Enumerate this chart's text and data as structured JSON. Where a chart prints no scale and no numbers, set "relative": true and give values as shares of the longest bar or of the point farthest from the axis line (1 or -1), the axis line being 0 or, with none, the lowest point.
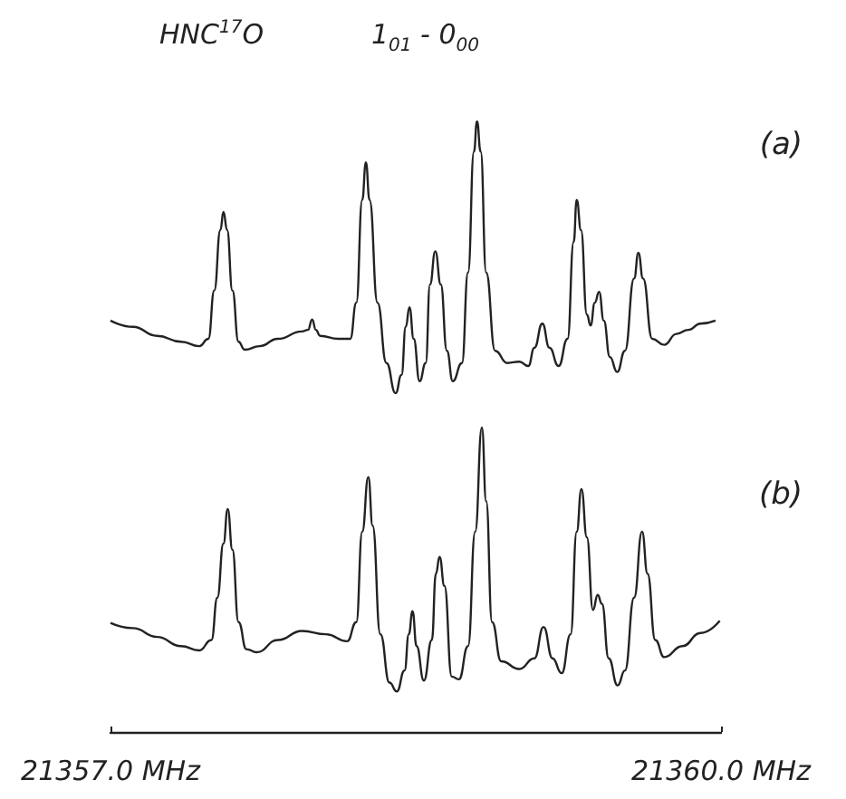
{
  "chart_data": [
    {
      "type": "line",
      "title": "HNC$^{17}$O",
      "subtitle": "1$_{01}$ - 0$_{00}$",
      "annotations": [
        "(a)"
      ],
      "relative": true,
      "marker": "none",
      "color": "#222222",
      "xlim": [
        21357.0,
        21360.0
      ],
      "x": [
        21357.0,
        21357.11,
        21357.229,
        21357.347,
        21357.436,
        21357.481,
        21357.51,
        21357.54,
        21357.555,
        21357.573,
        21357.599,
        21357.629,
        21357.659,
        21357.733,
        21357.822,
        21357.941,
        21357.97,
        21357.991,
        21358.009,
        21358.03,
        21358.119,
        21358.178,
        21358.208,
        21358.237,
        21358.255,
        21358.273,
        21358.312,
        21358.356,
        21358.401,
        21358.43,
        21358.451,
        21358.469,
        21358.49,
        21358.519,
        21358.549,
        21358.57,
        21358.596,
        21358.623,
        21358.653,
        21358.682,
        21358.727,
        21358.757,
        21358.786,
        21358.801,
        21358.819,
        21358.846,
        21358.89,
        21358.95,
        21359.009,
        21359.053,
        21359.083,
        21359.122,
        21359.157,
        21359.202,
        21359.246,
        21359.276,
        21359.291,
        21359.312,
        21359.341,
        21359.359,
        21359.38,
        21359.401,
        21359.424,
        21359.454,
        21359.49,
        21359.528,
        21359.573,
        21359.594,
        21359.617,
        21359.662,
        21359.721,
        21359.781,
        21359.84,
        21359.899,
        21359.973
      ],
      "values": [
        0.267,
        0.244,
        0.211,
        0.189,
        0.173,
        0.2,
        0.378,
        0.6,
        0.667,
        0.6,
        0.378,
        0.189,
        0.16,
        0.173,
        0.2,
        0.227,
        0.233,
        0.271,
        0.233,
        0.211,
        0.2,
        0.2,
        0.333,
        0.711,
        0.849,
        0.711,
        0.333,
        0.111,
        0,
        0.067,
        0.244,
        0.316,
        0.2,
        0.044,
        0.111,
        0.4,
        0.522,
        0.4,
        0.156,
        0.044,
        0.111,
        0.444,
        0.889,
        1.0,
        0.889,
        0.444,
        0.156,
        0.111,
        0.116,
        0.1,
        0.167,
        0.256,
        0.167,
        0.1,
        0.2,
        0.556,
        0.711,
        0.6,
        0.289,
        0.249,
        0.333,
        0.373,
        0.267,
        0.133,
        0.078,
        0.156,
        0.422,
        0.516,
        0.422,
        0.2,
        0.178,
        0.218,
        0.233,
        0.256,
        0.267
      ]
    },
    {
      "type": "line",
      "annotations": [
        "(b)"
      ],
      "relative": true,
      "marker": "none",
      "color": "#222222",
      "xlim": [
        21357.0,
        21360.0
      ],
      "xticks": [
        {
          "value": 21357.0,
          "label": "21357.0 MHz"
        },
        {
          "value": 21360.0,
          "label": "21360.0 MHz"
        }
      ],
      "x": [
        21357.0,
        21357.11,
        21357.229,
        21357.347,
        21357.436,
        21357.496,
        21357.525,
        21357.555,
        21357.576,
        21357.599,
        21357.629,
        21357.668,
        21357.718,
        21357.822,
        21357.941,
        21358.059,
        21358.163,
        21358.208,
        21358.237,
        21358.267,
        21358.288,
        21358.326,
        21358.371,
        21358.407,
        21358.445,
        21358.466,
        21358.484,
        21358.504,
        21358.54,
        21358.579,
        21358.599,
        21358.617,
        21358.641,
        21358.677,
        21358.712,
        21358.757,
        21358.792,
        21358.825,
        21358.846,
        21358.875,
        21358.92,
        21359.009,
        21359.083,
        21359.128,
        21359.172,
        21359.217,
        21359.261,
        21359.291,
        21359.314,
        21359.341,
        21359.371,
        21359.394,
        21359.415,
        21359.448,
        21359.492,
        21359.528,
        21359.573,
        21359.612,
        21359.639,
        21359.677,
        21359.721,
        21359.81,
        21359.899,
        21359.994
      ],
      "values": [
        0.358,
        0.341,
        0.312,
        0.282,
        0.268,
        0.302,
        0.441,
        0.619,
        0.732,
        0.599,
        0.361,
        0.272,
        0.262,
        0.302,
        0.332,
        0.321,
        0.298,
        0.361,
        0.658,
        0.837,
        0.678,
        0.321,
        0.162,
        0.133,
        0.202,
        0.321,
        0.397,
        0.282,
        0.169,
        0.302,
        0.52,
        0.575,
        0.48,
        0.182,
        0.173,
        0.282,
        0.658,
        1.0,
        0.758,
        0.361,
        0.232,
        0.207,
        0.242,
        0.345,
        0.242,
        0.193,
        0.321,
        0.658,
        0.798,
        0.639,
        0.401,
        0.45,
        0.421,
        0.242,
        0.153,
        0.202,
        0.441,
        0.658,
        0.52,
        0.302,
        0.246,
        0.282,
        0.325,
        0.365
      ]
    }
  ]
}
